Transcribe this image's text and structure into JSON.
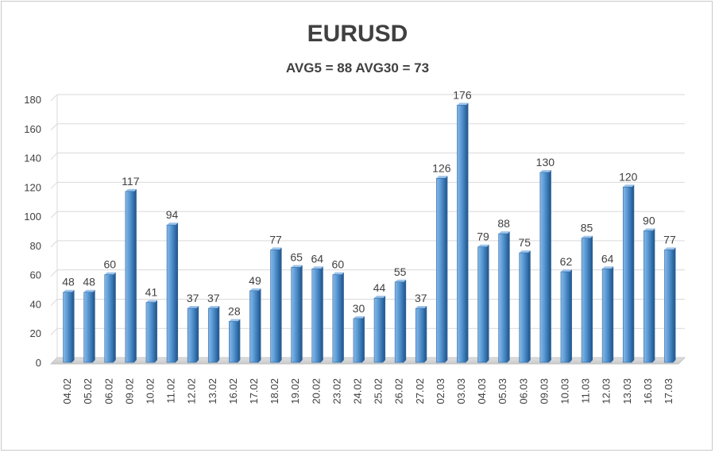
{
  "chart_data": {
    "type": "bar",
    "title": "EURUSD",
    "subtitle": "AVG5 = 88 AVG30 = 73",
    "categories": [
      "04.02",
      "05.02",
      "06.02",
      "09.02",
      "10.02",
      "11.02",
      "12.02",
      "13.02",
      "16.02",
      "17.02",
      "18.02",
      "19.02",
      "20.02",
      "23.02",
      "24.02",
      "25.02",
      "26.02",
      "27.02",
      "02.03",
      "03.03",
      "04.03",
      "05.03",
      "06.03",
      "09.03",
      "10.03",
      "11.03",
      "12.03",
      "13.03",
      "16.03",
      "17.03"
    ],
    "values": [
      48,
      48,
      60,
      117,
      41,
      94,
      37,
      37,
      28,
      49,
      77,
      65,
      64,
      60,
      30,
      44,
      55,
      37,
      126,
      176,
      79,
      88,
      75,
      130,
      62,
      85,
      64,
      120,
      90,
      77
    ],
    "ylim": [
      0,
      180
    ],
    "yticks": [
      0,
      20,
      40,
      60,
      80,
      100,
      120,
      140,
      160,
      180
    ],
    "grid": true,
    "bar_color": "#5b9bd5"
  }
}
